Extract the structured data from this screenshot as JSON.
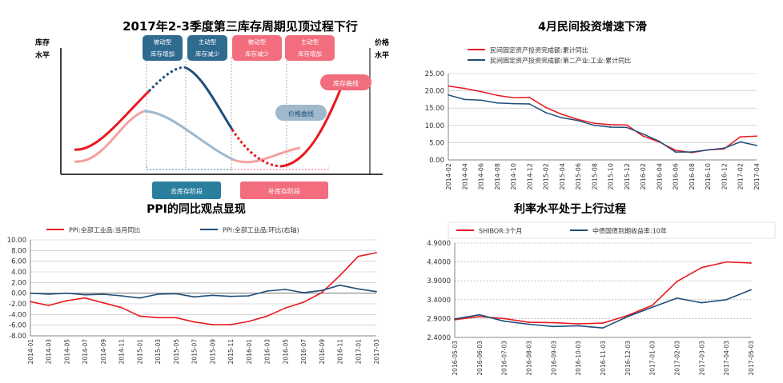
{
  "colors": {
    "red": "#e8191f",
    "blue": "#1f4e79",
    "light_red": "#f4a0a0",
    "light_blue": "#9fb8cc",
    "teal": "#2a7f9e",
    "pink": "#f26d7d",
    "grey": "#b3b3b3"
  },
  "chart_data": [
    {
      "type": "line",
      "title": "2017年2-3季度第三库存周期见顶过程下行",
      "ylabel_left": "库存水平",
      "ylabel_right": "价格水平",
      "phase_labels": [
        "被动型库存增加",
        "主动型库存减少",
        "被动型库存减少",
        "主动型库存增加"
      ],
      "stage_labels": [
        "去库存阶段",
        "补库存阶段"
      ],
      "curve_labels": [
        "库存曲线",
        "价格曲线"
      ],
      "series": [
        {
          "name": "库存曲线",
          "style": "solid-red/dark-blue, dotted at turning points"
        },
        {
          "name": "价格曲线",
          "style": "solid light"
        }
      ],
      "ticks": false
    },
    {
      "type": "line",
      "title": "4月民间投资增速下滑",
      "legend_position": "top-left",
      "categories": [
        "2014-02",
        "2014-04",
        "2014-06",
        "2014-08",
        "2014-10",
        "2014-12",
        "2015-02",
        "2015-04",
        "2015-06",
        "2015-08",
        "2015-10",
        "2015-12",
        "2016-02",
        "2016-04",
        "2016-06",
        "2016-08",
        "2016-10",
        "2016-12",
        "2017-02",
        "2017-04"
      ],
      "ylim": [
        0,
        25
      ],
      "yticks": [
        "25.00",
        "20.00",
        "15.00",
        "10.00",
        "5.00",
        "0.00"
      ],
      "grid": true,
      "series": [
        {
          "name": "民间固定资产投资完成额:累计同比",
          "color": "red",
          "values": [
            21.4,
            20.7,
            19.8,
            18.7,
            18.0,
            18.1,
            15.2,
            13.2,
            11.7,
            10.6,
            10.2,
            10.1,
            6.9,
            5.2,
            2.8,
            2.1,
            2.9,
            3.2,
            6.7,
            6.9
          ]
        },
        {
          "name": "民间固定资产投资完成额:第二产业:工业:累计同比",
          "color": "blue",
          "values": [
            18.8,
            17.5,
            17.3,
            16.5,
            16.3,
            16.2,
            13.7,
            12.2,
            11.4,
            10.0,
            9.5,
            9.4,
            7.5,
            5.4,
            2.3,
            2.3,
            2.9,
            3.4,
            5.2,
            4.2
          ]
        }
      ]
    },
    {
      "type": "line",
      "title": "PPI的同比观点显现",
      "legend_position": "top-left",
      "categories": [
        "2014-01",
        "2014-03",
        "2014-05",
        "2014-07",
        "2014-09",
        "2014-11",
        "2015-01",
        "2015-03",
        "2015-05",
        "2015-07",
        "2015-09",
        "2015-11",
        "2016-01",
        "2016-03",
        "2016-05",
        "2016-07",
        "2016-09",
        "2016-11",
        "2017-01",
        "2017-03"
      ],
      "ylim": [
        -8,
        10
      ],
      "yticks": [
        "10.00",
        "8.00",
        "6.00",
        "4.00",
        "2.00",
        "0.00",
        "-2.00",
        "-4.00",
        "-6.00",
        "-8.00"
      ],
      "grid": true,
      "series": [
        {
          "name": "PPI:全部工业品:当月同比",
          "color": "red",
          "values": [
            -1.6,
            -2.3,
            -1.4,
            -0.9,
            -1.8,
            -2.7,
            -4.3,
            -4.6,
            -4.6,
            -5.4,
            -5.9,
            -5.9,
            -5.3,
            -4.3,
            -2.8,
            -1.7,
            0.1,
            3.3,
            6.9,
            7.6
          ]
        },
        {
          "name": "PPI:全部工业品:环比(右轴)",
          "color": "blue",
          "values": [
            0.0,
            -0.2,
            0.0,
            -0.3,
            -0.2,
            -0.5,
            -0.9,
            -0.2,
            -0.1,
            -0.7,
            -0.4,
            -0.6,
            -0.5,
            0.4,
            0.7,
            0.1,
            0.5,
            1.5,
            0.8,
            0.3
          ]
        }
      ]
    },
    {
      "type": "line",
      "title": "利率水平处于上行过程",
      "legend_position": "top-left",
      "categories": [
        "2016-05-03",
        "2016-06-03",
        "2016-07-03",
        "2016-08-03",
        "2016-09-03",
        "2016-10-03",
        "2016-11-03",
        "2016-12-03",
        "2017-01-03",
        "2017-02-03",
        "2017-03-03",
        "2017-04-03",
        "2017-05-03"
      ],
      "ylim": [
        2.4,
        4.9
      ],
      "yticks": [
        "4.9000",
        "4.4000",
        "3.9000",
        "3.4000",
        "2.9000",
        "2.4000"
      ],
      "grid": true,
      "series": [
        {
          "name": "SHIBOR:3个月",
          "color": "red",
          "values": [
            2.87,
            2.95,
            2.9,
            2.8,
            2.79,
            2.76,
            2.78,
            2.98,
            3.25,
            3.88,
            4.25,
            4.4,
            4.37
          ]
        },
        {
          "name": "中债国债到期收益率:10年",
          "color": "blue",
          "values": [
            2.89,
            3.0,
            2.83,
            2.75,
            2.69,
            2.71,
            2.65,
            2.95,
            3.2,
            3.44,
            3.32,
            3.4,
            3.66
          ]
        }
      ]
    }
  ]
}
